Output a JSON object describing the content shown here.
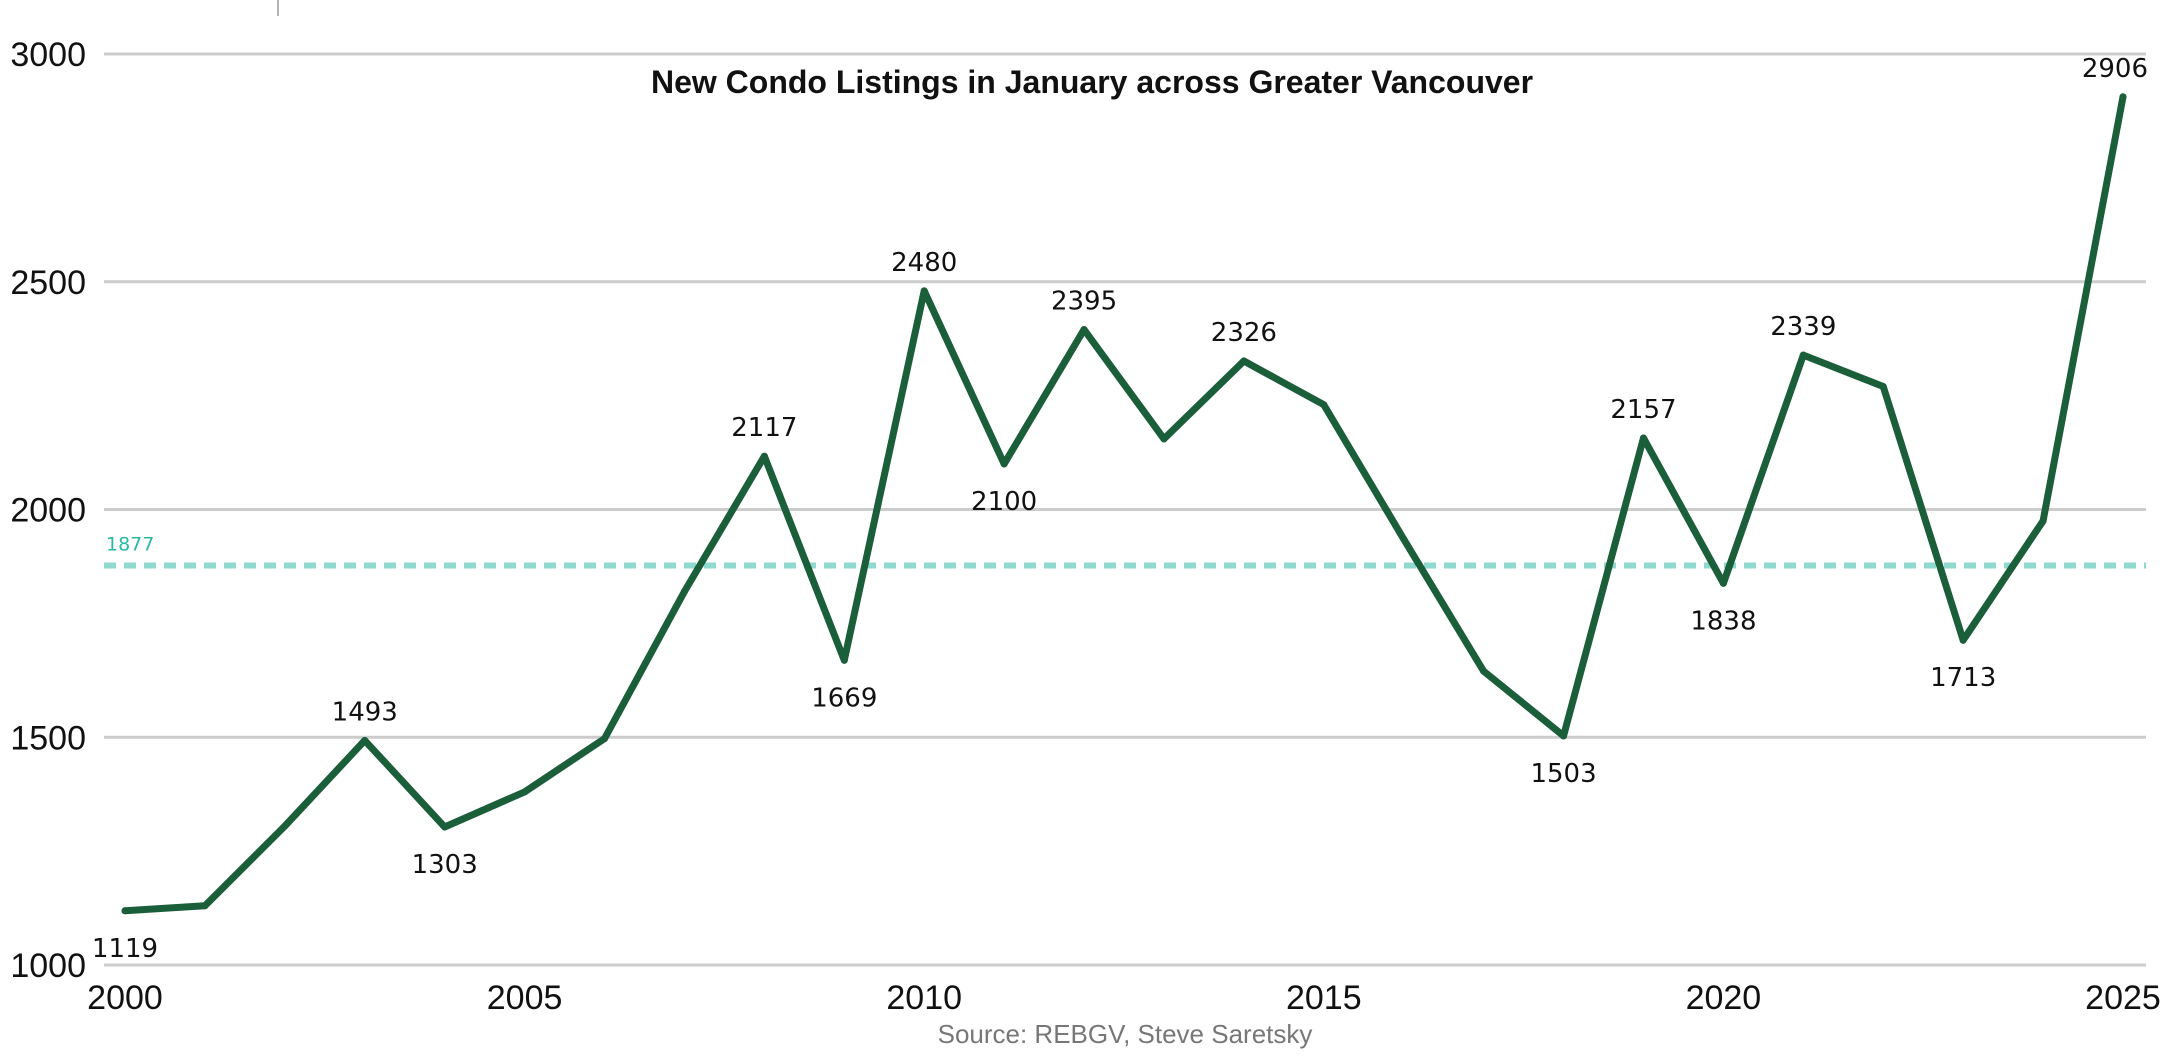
{
  "chart_data": {
    "type": "line",
    "title": "New Condo Listings in January across Greater Vancouver",
    "source": "Source: REBGV, Steve Saretsky",
    "xlabel": "",
    "ylabel": "",
    "xlim": [
      2000,
      2025
    ],
    "ylim": [
      1000,
      3000
    ],
    "x_ticks": [
      2000,
      2005,
      2010,
      2015,
      2020,
      2025
    ],
    "y_ticks": [
      1000,
      1500,
      2000,
      2500,
      3000
    ],
    "grid": "horizontal",
    "legend": "none",
    "x": [
      2000,
      2001,
      2002,
      2003,
      2004,
      2005,
      2006,
      2007,
      2008,
      2009,
      2010,
      2011,
      2012,
      2013,
      2014,
      2015,
      2016,
      2017,
      2018,
      2019,
      2020,
      2021,
      2022,
      2023,
      2024,
      2025
    ],
    "series": [
      {
        "values": [
          1119,
          1130,
          1305,
          1493,
          1303,
          1380,
          1497,
          1820,
          2117,
          1669,
          2480,
          2100,
          2395,
          2155,
          2326,
          2230,
          1935,
          1645,
          1503,
          2157,
          1838,
          2339,
          2270,
          1713,
          1975,
          2906
        ],
        "color": "#1a5e3a"
      }
    ],
    "data_labels": [
      {
        "x": 2000,
        "text": "1119",
        "position": "below"
      },
      {
        "x": 2003,
        "text": "1493",
        "position": "above"
      },
      {
        "x": 2004,
        "text": "1303",
        "position": "below"
      },
      {
        "x": 2008,
        "text": "2117",
        "position": "above"
      },
      {
        "x": 2009,
        "text": "1669",
        "position": "below"
      },
      {
        "x": 2010,
        "text": "2480",
        "position": "above"
      },
      {
        "x": 2011,
        "text": "2100",
        "position": "below"
      },
      {
        "x": 2012,
        "text": "2395",
        "position": "above"
      },
      {
        "x": 2014,
        "text": "2326",
        "position": "above"
      },
      {
        "x": 2018,
        "text": "1503",
        "position": "below"
      },
      {
        "x": 2019,
        "text": "2157",
        "position": "above"
      },
      {
        "x": 2020,
        "text": "1838",
        "position": "below"
      },
      {
        "x": 2021,
        "text": "2339",
        "position": "above"
      },
      {
        "x": 2023,
        "text": "1713",
        "position": "below"
      },
      {
        "x": 2025,
        "text": "2906",
        "position": "above"
      }
    ],
    "reference_line": {
      "value": 1877,
      "label": "1877",
      "style": "dashed",
      "color": "#8fd9cf",
      "label_color": "#2bb8a8"
    }
  }
}
